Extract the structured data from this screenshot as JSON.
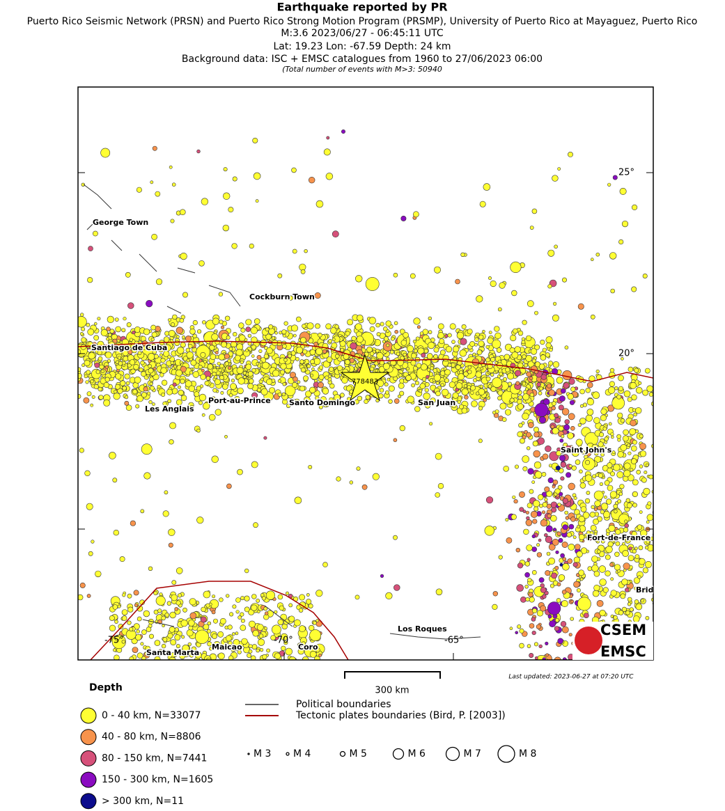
{
  "header": {
    "title": "Earthquake reported by PR",
    "lines": [
      "Puerto Rico Seismic Network (PRSN) and Puerto Rico Strong Motion Program (PRSMP), University of Puerto Rico at Mayaguez, Puerto Rico",
      "M:3.6 2023/06/27 - 06:45:11 UTC",
      "Lat: 19.23 Lon: -67.59 Depth: 24 km",
      "Background data: ISC + EMSC catalogues from 1960 to 27/06/2023 06:00"
    ],
    "note": "(Total number of events with M>3: 50940"
  },
  "map": {
    "lat_labels": [
      "25°",
      "20°"
    ],
    "lon_labels": [
      "-75°",
      "-70°",
      "-65°"
    ],
    "cities": [
      "George Town",
      "Cockburn Town",
      "Santiago de Cuba",
      "Les Anglais",
      "Port-au-Prince",
      "Santo Domingo",
      "San Juan",
      "Saint John's",
      "Fort-de-France",
      "Bridgetown",
      "Santa Marta",
      "Maicao",
      "Coro",
      "Los Roques"
    ],
    "event_id": "778483",
    "scale": "300 km",
    "last_updated": "Last updated: 2023-06-27 at 07:20 UTC",
    "logo": [
      "CSEM",
      "EMSC"
    ]
  },
  "legend": {
    "depth_title": "Depth",
    "depth": [
      {
        "label": "0 - 40 km, N=33077",
        "color": "#ffff33"
      },
      {
        "label": "40 - 80 km, N=8806",
        "color": "#f7934c"
      },
      {
        "label": "80 - 150 km, N=7441",
        "color": "#d6517a"
      },
      {
        "label": "150 - 300 km, N=1605",
        "color": "#8a0cc0"
      },
      {
        "label": "> 300 km, N=11",
        "color": "#0c0c8c"
      }
    ],
    "lines": [
      {
        "label": "Political boundaries",
        "color": "#666666"
      },
      {
        "label": "Tectonic plates boundaries (Bird, P. [2003])",
        "color": "#a50000"
      }
    ],
    "magnitudes": [
      "M 3",
      "M 4",
      "M 5",
      "M 6",
      "M 7",
      "M 8"
    ]
  }
}
